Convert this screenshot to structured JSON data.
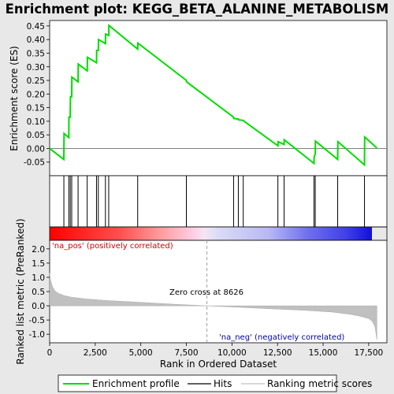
{
  "chart_data": {
    "type": "line",
    "title": "Enrichment plot: KEGG_BETA_ALANINE_METABOLISM",
    "panels": {
      "enrichment": {
        "ylabel": "Enrichment score (ES)",
        "ylim": [
          -0.1,
          0.47
        ],
        "yticks": [
          -0.05,
          0.0,
          0.05,
          0.1,
          0.15,
          0.2,
          0.25,
          0.3,
          0.35,
          0.4,
          0.45
        ],
        "ytick_labels": [
          "-0.05",
          "0.00",
          "0.05",
          "0.10",
          "0.15",
          "0.20",
          "0.25",
          "0.30",
          "0.35",
          "0.40",
          "0.45"
        ],
        "series": [
          {
            "name": "Enrichment profile",
            "color": "#00dd00",
            "x": [
              0,
              780,
              790,
              1050,
              1060,
              1130,
              1140,
              1210,
              1220,
              1560,
              1570,
              2060,
              2070,
              2570,
              2580,
              2670,
              2680,
              3060,
              3070,
              3240,
              3250,
              4830,
              4840,
              7500,
              7510,
              10090,
              10100,
              10350,
              10360,
              10620,
              10630,
              12520,
              12530,
              12860,
              12870,
              14500,
              14510,
              14570,
              14580,
              15800,
              15810,
              17270,
              17280,
              17950
            ],
            "y": [
              0.0,
              -0.04,
              0.055,
              0.04,
              0.115,
              0.115,
              0.19,
              0.19,
              0.262,
              0.245,
              0.31,
              0.285,
              0.335,
              0.315,
              0.36,
              0.36,
              0.4,
              0.385,
              0.42,
              0.415,
              0.452,
              0.365,
              0.387,
              0.25,
              0.245,
              0.115,
              0.11,
              0.108,
              0.105,
              0.103,
              0.102,
              0.01,
              0.025,
              0.015,
              0.032,
              -0.055,
              -0.03,
              -0.02,
              0.027,
              -0.04,
              0.025,
              -0.06,
              0.042,
              0.002
            ]
          }
        ]
      },
      "hits": {
        "positions": [
          780,
          1050,
          1130,
          1210,
          1560,
          2060,
          2570,
          2670,
          3060,
          3240,
          4830,
          7500,
          10090,
          10350,
          10620,
          12520,
          12860,
          14500,
          14570,
          15800,
          17270
        ]
      },
      "ranked_metric": {
        "ylabel": "Ranked list metric (PreRanked)",
        "ylim": [
          -1.3,
          2.3
        ],
        "yticks": [
          -1.0,
          -0.5,
          0.0,
          0.5,
          1.0,
          1.5,
          2.0
        ],
        "ytick_labels": [
          "-1.0",
          "-0.5",
          "0.0",
          "0.5",
          "1.0",
          "1.5",
          "2.0"
        ],
        "x": [
          0,
          50,
          150,
          300,
          500,
          800,
          1200,
          2000,
          3000,
          5000,
          7000,
          8626,
          10000,
          12000,
          14000,
          15500,
          16500,
          17000,
          17500,
          17700,
          17850,
          17950
        ],
        "y": [
          1.15,
          0.9,
          0.68,
          0.52,
          0.43,
          0.36,
          0.3,
          0.24,
          0.19,
          0.12,
          0.05,
          0.0,
          -0.04,
          -0.1,
          -0.16,
          -0.22,
          -0.3,
          -0.36,
          -0.45,
          -0.55,
          -0.75,
          -1.2
        ],
        "zero_cross_label": "Zero cross at 8626",
        "pos_label": "'na_pos' (positively correlated)",
        "neg_label": "'na_neg' (negatively correlated)"
      }
    },
    "xlabel": "Rank in Ordered Dataset",
    "xlim": [
      0,
      18500
    ],
    "xticks": [
      0,
      2500,
      5000,
      7500,
      10000,
      12500,
      15000,
      17500
    ],
    "xtick_labels": [
      "0",
      "2,500",
      "5,000",
      "7,500",
      "10,000",
      "12,500",
      "15,000",
      "17,500"
    ],
    "n_genes": 17950,
    "zero_cross": 8626,
    "legend": [
      "Enrichment profile",
      "Hits",
      "Ranking metric scores"
    ],
    "legend_position": "bottom",
    "colors": {
      "profile": "#00dd00",
      "hits": "#000000",
      "metric": "#c0c0c0",
      "pos_text": "#cc0000",
      "neg_text": "#0000aa",
      "zero_line": "#a0a0a0"
    }
  }
}
